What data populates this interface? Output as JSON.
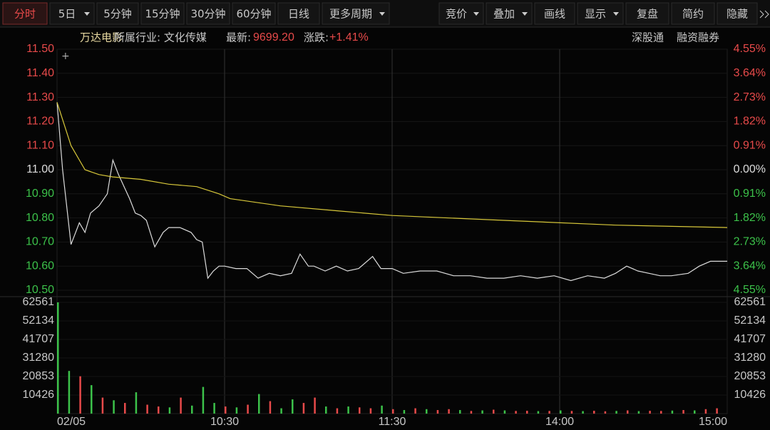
{
  "toolbar": {
    "left": [
      "分时",
      "5日",
      "5分钟",
      "15分钟",
      "30分钟",
      "60分钟",
      "日线",
      "更多周期"
    ],
    "right": [
      "竞价",
      "叠加",
      "画线",
      "显示",
      "复盘",
      "简约",
      "隐藏"
    ]
  },
  "info": {
    "name": "万达电影",
    "industry": "所属行业: 文化传媒",
    "latest_label": "最新:",
    "latest": "9699.20",
    "change_label": "涨跌:",
    "change": "+1.41%",
    "tags": [
      "深股通",
      "融资融券"
    ]
  },
  "chart_data": [
    {
      "type": "line",
      "xlim": [
        0,
        240
      ],
      "xticks": [
        {
          "value": 0,
          "label": "02/05"
        },
        {
          "value": 60,
          "label": "10:30"
        },
        {
          "value": 120,
          "label": "11:30"
        },
        {
          "value": 180,
          "label": "14:00"
        },
        {
          "value": 240,
          "label": "15:00"
        }
      ],
      "ylim": [
        10.5,
        11.5
      ],
      "yticks": [
        {
          "value": 11.5,
          "label": "11.50"
        },
        {
          "value": 11.4,
          "label": "11.40"
        },
        {
          "value": 11.3,
          "label": "11.30"
        },
        {
          "value": 11.2,
          "label": "11.20"
        },
        {
          "value": 11.1,
          "label": "11.10"
        },
        {
          "value": 11,
          "label": "11.00"
        },
        {
          "value": 10.9,
          "label": "10.90"
        },
        {
          "value": 10.8,
          "label": "10.80"
        },
        {
          "value": 10.7,
          "label": "10.70"
        },
        {
          "value": 10.6,
          "label": "10.60"
        },
        {
          "value": 10.5,
          "label": "10.50"
        }
      ],
      "y2lim": [
        -4.55,
        4.55
      ],
      "y2ticks": [
        {
          "value": 4.55,
          "label": "4.55%"
        },
        {
          "value": 3.64,
          "label": "3.64%"
        },
        {
          "value": 2.73,
          "label": "2.73%"
        },
        {
          "value": 1.82,
          "label": "1.82%"
        },
        {
          "value": 0.91,
          "label": "0.91%"
        },
        {
          "value": 0,
          "label": "0.00%"
        },
        {
          "value": -0.91,
          "label": "0.91%"
        },
        {
          "value": -1.82,
          "label": "1.82%"
        },
        {
          "value": -2.73,
          "label": "2.73%"
        },
        {
          "value": -3.64,
          "label": "3.64%"
        },
        {
          "value": -4.55,
          "label": "4.55%"
        }
      ],
      "series": [
        {
          "color": "#dcdcdc",
          "x": [
            0,
            2,
            5,
            8,
            10,
            12,
            15,
            18,
            20,
            22,
            24,
            26,
            28,
            30,
            32,
            35,
            38,
            40,
            44,
            48,
            50,
            52,
            54,
            56,
            58,
            60,
            64,
            68,
            72,
            76,
            80,
            84,
            87,
            90,
            92,
            96,
            100,
            104,
            108,
            113,
            116,
            120,
            124,
            130,
            136,
            142,
            148,
            154,
            160,
            166,
            172,
            178,
            184,
            190,
            196,
            200,
            204,
            208,
            212,
            216,
            220,
            226,
            230,
            234,
            240
          ],
          "values": [
            11.28,
            11.0,
            10.69,
            10.78,
            10.74,
            10.82,
            10.85,
            10.9,
            11.04,
            10.98,
            10.93,
            10.88,
            10.82,
            10.81,
            10.79,
            10.68,
            10.74,
            10.76,
            10.76,
            10.74,
            10.71,
            10.7,
            10.55,
            10.58,
            10.6,
            10.6,
            10.59,
            10.59,
            10.55,
            10.57,
            10.56,
            10.57,
            10.65,
            10.6,
            10.6,
            10.58,
            10.6,
            10.58,
            10.59,
            10.64,
            10.59,
            10.59,
            10.57,
            10.58,
            10.58,
            10.56,
            10.56,
            10.55,
            10.55,
            10.56,
            10.55,
            10.56,
            10.54,
            10.56,
            10.55,
            10.57,
            10.6,
            10.58,
            10.57,
            10.56,
            10.56,
            10.57,
            10.6,
            10.62,
            10.62
          ]
        },
        {
          "color": "#d8c83a",
          "x": [
            0,
            5,
            10,
            15,
            20,
            30,
            40,
            50,
            58,
            62,
            80,
            100,
            120,
            160,
            200,
            240
          ],
          "values": [
            11.28,
            11.1,
            11.0,
            10.98,
            10.97,
            10.96,
            10.94,
            10.93,
            10.9,
            10.88,
            10.85,
            10.83,
            10.81,
            10.79,
            10.77,
            10.76
          ]
        }
      ]
    },
    {
      "type": "bar",
      "xlim": [
        0,
        240
      ],
      "ylim": [
        0,
        62561
      ],
      "yticks": [
        10426,
        20853,
        31280,
        41707,
        52134,
        62561
      ],
      "x": [
        0,
        4,
        8,
        12,
        16,
        20,
        24,
        28,
        32,
        36,
        40,
        44,
        48,
        52,
        56,
        60,
        64,
        68,
        72,
        76,
        80,
        84,
        88,
        92,
        96,
        100,
        104,
        108,
        112,
        116,
        120,
        124,
        128,
        132,
        136,
        140,
        144,
        148,
        152,
        156,
        160,
        164,
        168,
        172,
        176,
        180,
        184,
        188,
        192,
        196,
        200,
        204,
        208,
        212,
        216,
        220,
        224,
        228,
        232,
        236
      ],
      "values": [
        62561,
        24000,
        21000,
        16000,
        9000,
        7500,
        6000,
        12000,
        5000,
        4000,
        3500,
        9000,
        4500,
        15000,
        6000,
        4000,
        3500,
        5000,
        11000,
        7000,
        3000,
        8000,
        6000,
        9000,
        4000,
        3000,
        4000,
        3500,
        3000,
        4500,
        2500,
        2000,
        3000,
        2500,
        2000,
        2500,
        2000,
        1500,
        1800,
        2200,
        1800,
        1500,
        1600,
        1400,
        1500,
        1800,
        1500,
        1400,
        1600,
        1300,
        1500,
        1800,
        1400,
        1600,
        1500,
        1700,
        2000,
        1800,
        2500,
        3000
      ],
      "colors": [
        "#3cc24a",
        "#3cc24a",
        "#e84a4a",
        "#3cc24a",
        "#e84a4a",
        "#3cc24a",
        "#e84a4a",
        "#3cc24a",
        "#e84a4a",
        "#e84a4a",
        "#3cc24a",
        "#e84a4a",
        "#3cc24a",
        "#3cc24a",
        "#3cc24a",
        "#e84a4a",
        "#3cc24a",
        "#e84a4a",
        "#3cc24a",
        "#e84a4a",
        "#3cc24a",
        "#3cc24a",
        "#e84a4a",
        "#e84a4a",
        "#3cc24a",
        "#e84a4a",
        "#3cc24a",
        "#e84a4a",
        "#e84a4a",
        "#3cc24a",
        "#e84a4a",
        "#3cc24a",
        "#e84a4a",
        "#3cc24a",
        "#e84a4a",
        "#e84a4a",
        "#3cc24a",
        "#e84a4a",
        "#3cc24a",
        "#e84a4a",
        "#3cc24a",
        "#e84a4a",
        "#e84a4a",
        "#3cc24a",
        "#e84a4a",
        "#3cc24a",
        "#e84a4a",
        "#3cc24a",
        "#e84a4a",
        "#e84a4a",
        "#3cc24a",
        "#e84a4a",
        "#3cc24a",
        "#e84a4a",
        "#e84a4a",
        "#3cc24a",
        "#e84a4a",
        "#3cc24a",
        "#e84a4a",
        "#e84a4a"
      ]
    }
  ]
}
